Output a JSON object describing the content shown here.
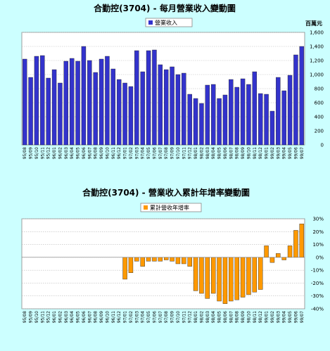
{
  "chart_data": [
    {
      "type": "bar",
      "title": "合勤控(3704) - 每月營業收入變動圖",
      "legend": "營業收入",
      "legend_position": "top",
      "unit": "百萬元",
      "ylim": [
        0,
        1600
      ],
      "yticks": [
        0,
        200,
        400,
        600,
        800,
        1000,
        1200,
        1400,
        1600
      ],
      "ytick_labels": [
        "0",
        "200",
        "400",
        "600",
        "800",
        "1,000",
        "1,200",
        "1,400",
        "1,600"
      ],
      "bar_color": "#3333cc",
      "grid": true,
      "categories": [
        "95/08",
        "95/09",
        "95/10",
        "95/11",
        "95/12",
        "96/01",
        "96/02",
        "96/03",
        "96/04",
        "96/05",
        "96/06",
        "96/07",
        "96/08",
        "96/09",
        "96/10",
        "96/11",
        "96/12",
        "97/01",
        "97/02",
        "97/03",
        "97/04",
        "97/05",
        "97/06",
        "97/07",
        "97/08",
        "97/09",
        "97/10",
        "97/11",
        "97/12",
        "98/01",
        "98/02",
        "98/03",
        "98/04",
        "98/05",
        "98/06",
        "98/07",
        "98/08",
        "98/09",
        "98/10",
        "98/11",
        "98/12",
        "99/01",
        "99/02",
        "99/03",
        "99/04",
        "99/05",
        "99/06",
        "99/07"
      ],
      "xtick_labels": [
        "95/08",
        "95/09",
        "95/10",
        "95/11",
        "95/12",
        "96/01",
        "96/02",
        "96/03",
        "96/04",
        "96/05",
        "96/06",
        "96/07",
        "96/08",
        "96/09",
        "96/10",
        "96/11",
        "96/12",
        "97/01",
        "97/02",
        "97/03",
        "97/04",
        "97/05",
        "97/06",
        "97/07",
        "97/08",
        "97/09",
        "97/10",
        "97/11",
        "97/12",
        "98/01",
        "98/02",
        "98/03",
        "98/04",
        "98/05",
        "98/06",
        "98/07",
        "98/08",
        "98/09",
        "98/10",
        "98/11",
        "98/12",
        "99/01",
        "99/02",
        "99/03",
        "99/04",
        "99/05",
        "99/06",
        "99/07"
      ],
      "values": [
        1220,
        960,
        1260,
        1270,
        950,
        1070,
        880,
        1190,
        1230,
        1190,
        1400,
        1200,
        1030,
        1220,
        1260,
        1080,
        930,
        880,
        830,
        1340,
        1040,
        1340,
        1350,
        1140,
        1070,
        1110,
        1000,
        1020,
        720,
        660,
        590,
        850,
        860,
        660,
        710,
        930,
        820,
        940,
        860,
        1040,
        730,
        720,
        480,
        960,
        770,
        990,
        1280,
        1400
      ]
    },
    {
      "type": "bar",
      "title": "合勤控(3704) - 營業收入累計年增率變動圖",
      "legend": "累計營收年增率",
      "legend_position": "top",
      "ylim": [
        -40,
        30
      ],
      "yticks": [
        -40,
        -30,
        -20,
        -10,
        0,
        10,
        20,
        30
      ],
      "ytick_labels": [
        "-40%",
        "-30%",
        "-20%",
        "-10%",
        "0%",
        "10%",
        "20%",
        "30%"
      ],
      "bar_color": "#ff9900",
      "grid": true,
      "categories": [
        "95/08",
        "95/09",
        "95/10",
        "95/11",
        "95/12",
        "96/01",
        "96/02",
        "96/03",
        "96/04",
        "96/05",
        "96/06",
        "96/07",
        "96/08",
        "96/09",
        "96/10",
        "96/11",
        "96/12",
        "97/01",
        "97/02",
        "97/03",
        "97/04",
        "97/05",
        "97/06",
        "97/07",
        "97/08",
        "97/09",
        "97/10",
        "97/11",
        "97/12",
        "98/01",
        "98/02",
        "98/03",
        "98/04",
        "98/05",
        "98/06",
        "98/07",
        "98/08",
        "98/09",
        "98/10",
        "98/11",
        "98/12",
        "99/01",
        "99/02",
        "99/03",
        "99/04",
        "99/05",
        "99/06",
        "99/07"
      ],
      "xtick_labels": [
        "95/08",
        "95/09",
        "95/10",
        "95/11",
        "95/12",
        "96/01",
        "96/02",
        "96/03",
        "96/04",
        "96/05",
        "96/06",
        "96/07",
        "96/08",
        "96/09",
        "96/10",
        "96/11",
        "96/12",
        "97/01",
        "97/02",
        "97/03",
        "97/04",
        "97/05",
        "97/06",
        "97/07",
        "97/08",
        "97/09",
        "97/10",
        "97/11",
        "97/12",
        "98/01",
        "98/02",
        "98/03",
        "98/04",
        "98/05",
        "98/06",
        "98/07",
        "98/08",
        "98/09",
        "98/10",
        "98/11",
        "98/12",
        "99/01",
        "99/02",
        "99/03",
        "99/04",
        "99/05",
        "99/06",
        "99/07"
      ],
      "values": [
        null,
        null,
        null,
        null,
        null,
        null,
        null,
        null,
        null,
        null,
        null,
        null,
        null,
        null,
        null,
        null,
        null,
        -17,
        -12,
        -3,
        -7,
        -3,
        -3,
        -3,
        -2,
        -3,
        -5,
        -5,
        -7,
        -26,
        -28,
        -32,
        -28,
        -34,
        -36,
        -34,
        -33,
        -31,
        -29,
        -27,
        -25,
        9,
        -4,
        3,
        -2,
        9,
        21,
        26
      ]
    }
  ]
}
